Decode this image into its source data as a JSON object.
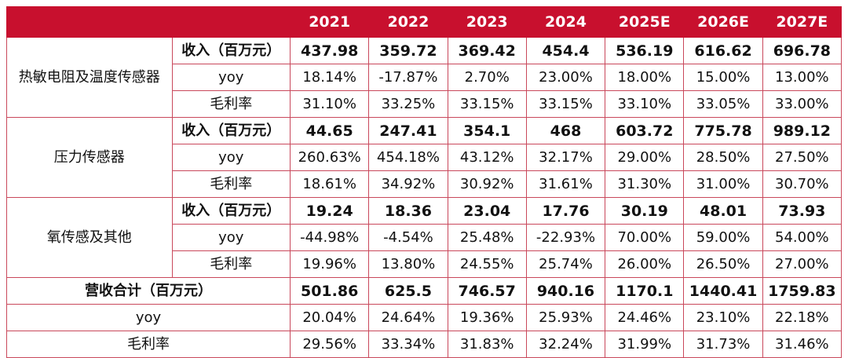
{
  "header": {
    "years": [
      "2021",
      "2022",
      "2023",
      "2024",
      "2025E",
      "2026E",
      "2027E"
    ]
  },
  "segments": [
    {
      "name": "热敏电阻及温度传感器",
      "rows": [
        {
          "label": "收入（百万元）",
          "values": [
            "437.98",
            "359.72",
            "369.42",
            "454.4",
            "536.19",
            "616.62",
            "696.78"
          ]
        },
        {
          "label": "yoy",
          "values": [
            "18.14%",
            "-17.87%",
            "2.70%",
            "23.00%",
            "18.00%",
            "15.00%",
            "13.00%"
          ]
        },
        {
          "label": "毛利率",
          "values": [
            "31.10%",
            "33.25%",
            "33.15%",
            "33.15%",
            "33.10%",
            "33.05%",
            "33.00%"
          ]
        }
      ]
    },
    {
      "name": "压力传感器",
      "rows": [
        {
          "label": "收入（百万元）",
          "values": [
            "44.65",
            "247.41",
            "354.1",
            "468",
            "603.72",
            "775.78",
            "989.12"
          ]
        },
        {
          "label": "yoy",
          "values": [
            "260.63%",
            "454.18%",
            "43.12%",
            "32.17%",
            "29.00%",
            "28.50%",
            "27.50%"
          ]
        },
        {
          "label": "毛利率",
          "values": [
            "18.61%",
            "34.92%",
            "30.92%",
            "31.61%",
            "31.30%",
            "31.00%",
            "30.70%"
          ]
        }
      ]
    },
    {
      "name": "氧传感及其他",
      "rows": [
        {
          "label": "收入（百万元）",
          "values": [
            "19.24",
            "18.36",
            "23.04",
            "17.76",
            "30.19",
            "48.01",
            "73.93"
          ]
        },
        {
          "label": "yoy",
          "values": [
            "-44.98%",
            "-4.54%",
            "25.48%",
            "-22.93%",
            "70.00%",
            "59.00%",
            "54.00%"
          ]
        },
        {
          "label": "毛利率",
          "values": [
            "19.96%",
            "13.80%",
            "24.55%",
            "25.74%",
            "26.00%",
            "26.50%",
            "27.00%"
          ]
        }
      ]
    }
  ],
  "totals": [
    {
      "label": "营收合计（百万元）",
      "values": [
        "501.86",
        "625.5",
        "746.57",
        "940.16",
        "1170.1",
        "1440.41",
        "1759.83"
      ]
    },
    {
      "label": "yoy",
      "values": [
        "20.04%",
        "24.64%",
        "19.36%",
        "25.93%",
        "24.46%",
        "23.10%",
        "22.18%"
      ]
    },
    {
      "label": "毛利率",
      "values": [
        "29.56%",
        "33.34%",
        "31.83%",
        "32.24%",
        "31.99%",
        "31.73%",
        "31.46%"
      ]
    }
  ],
  "colors": {
    "header_bg": "#c8102e",
    "header_text": "#ffffff",
    "border": "#c9485b"
  }
}
